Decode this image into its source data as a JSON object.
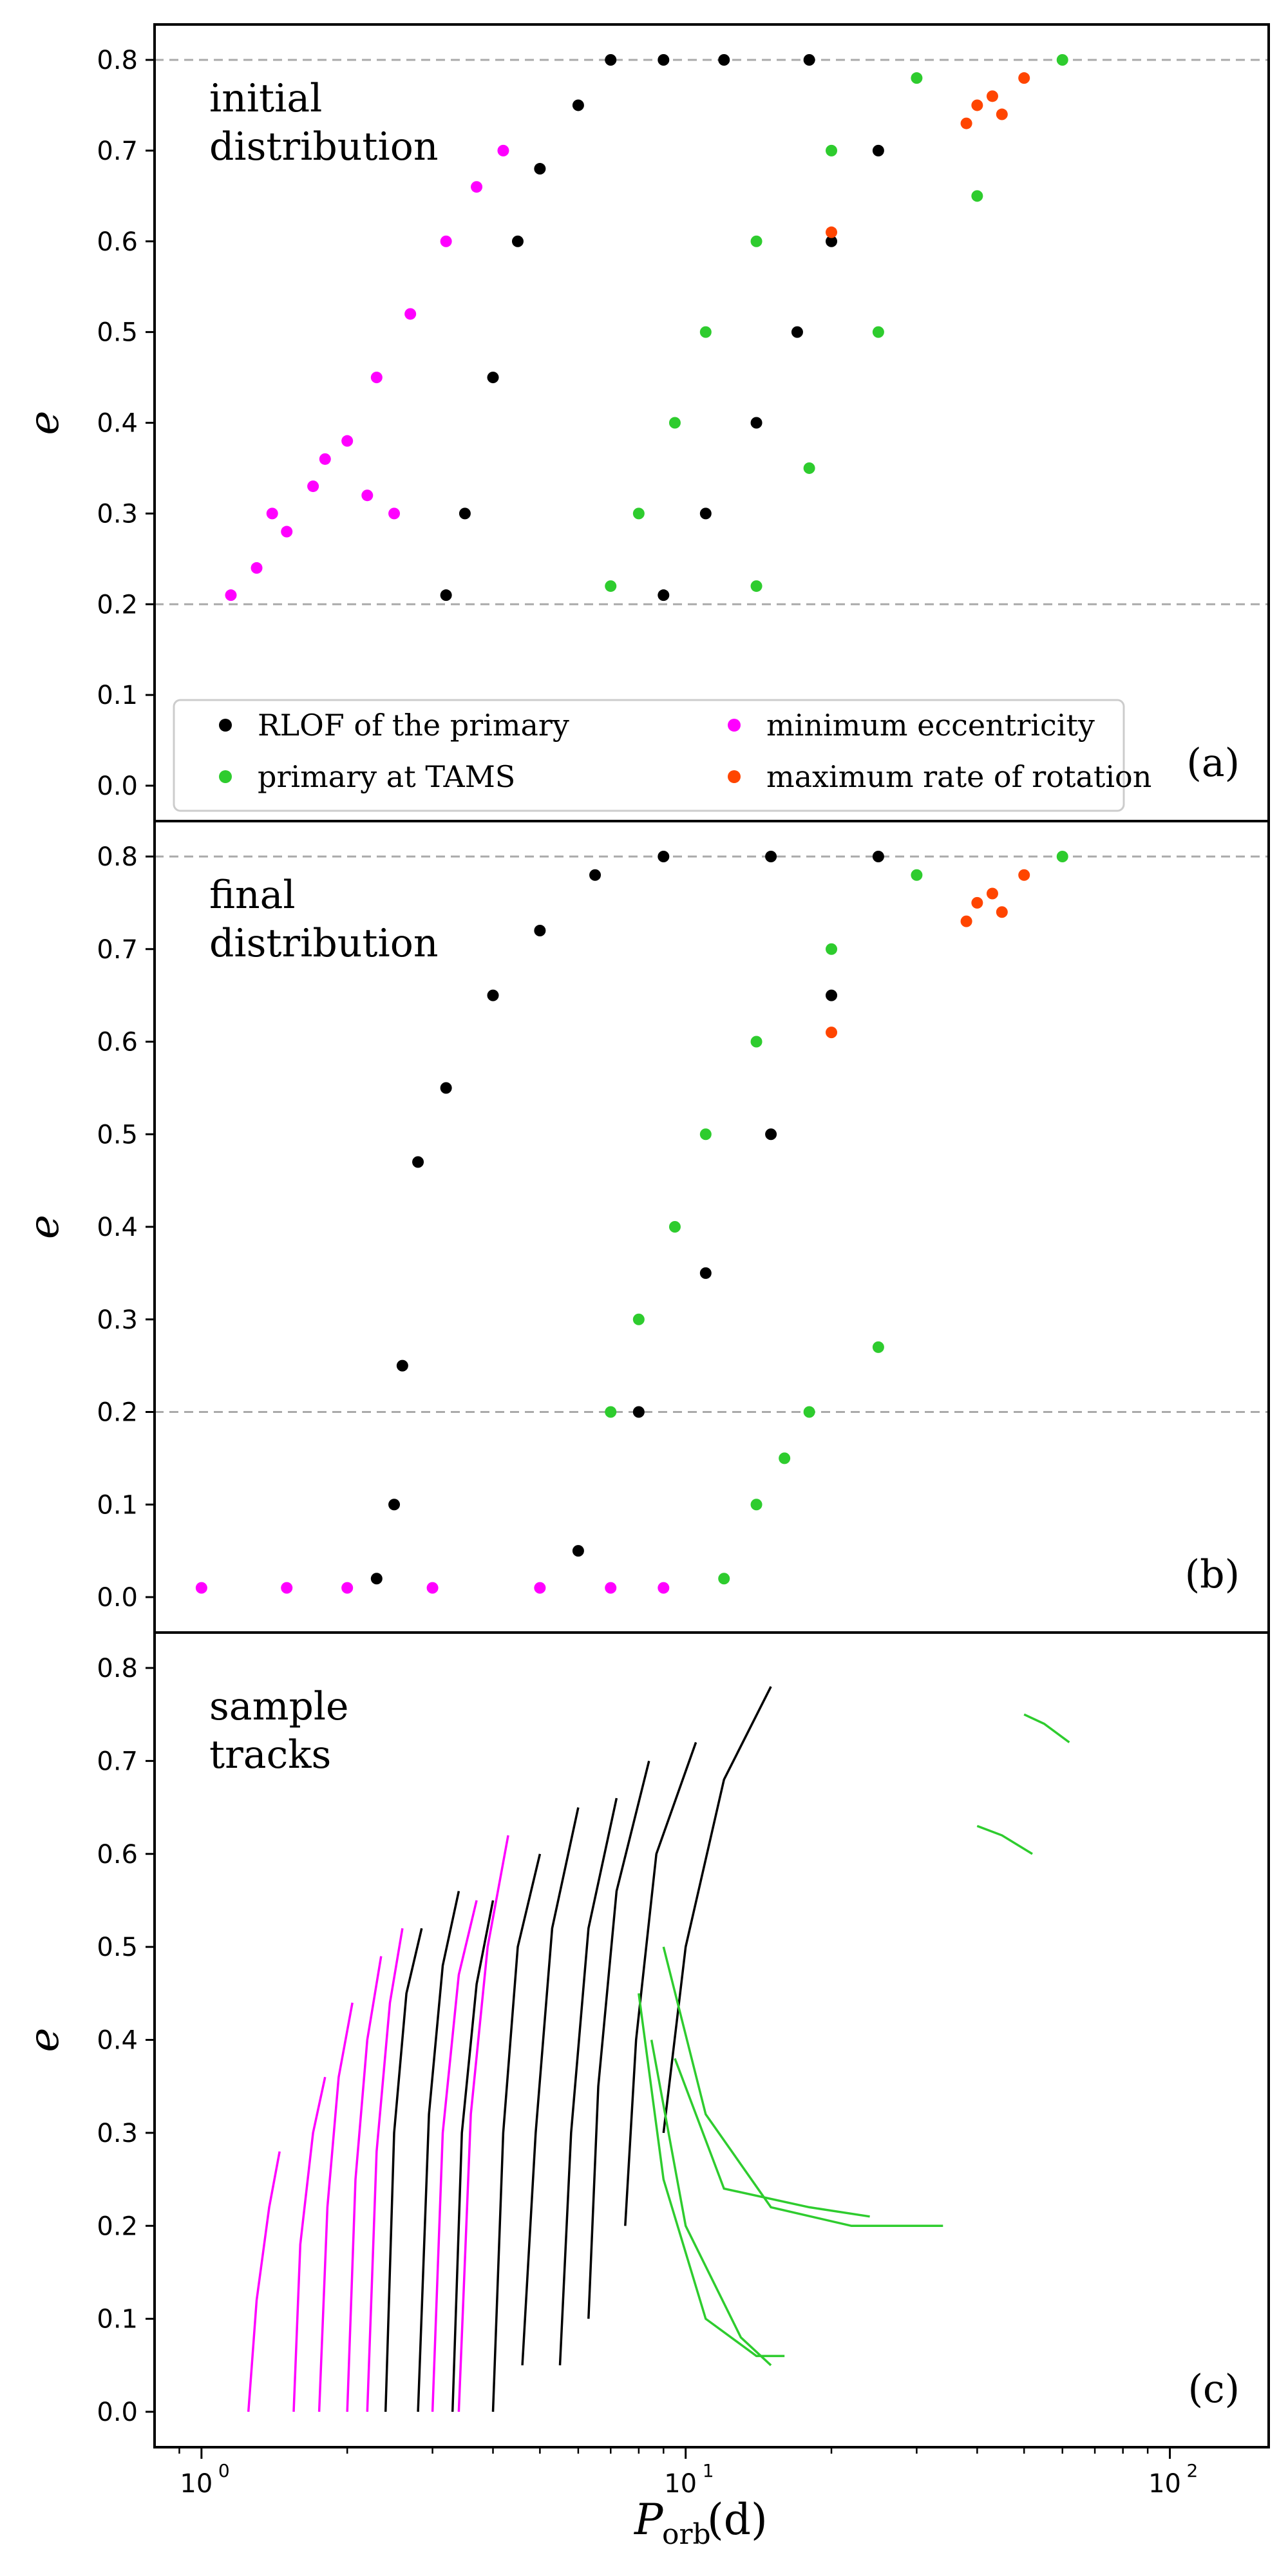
{
  "figure": {
    "xlabel_main": "P",
    "xlabel_sub": "orb",
    "xlabel_unit": "(d)",
    "xticks": [
      {
        "value": 1,
        "base": "10",
        "exp": "0"
      },
      {
        "value": 10,
        "base": "10",
        "exp": "1"
      },
      {
        "value": 100,
        "base": "10",
        "exp": "2"
      }
    ],
    "colors": {
      "rlof": "#000000",
      "tams": "#2ecc2e",
      "min_ecc": "#ff00ff",
      "max_rot": "#ff4500",
      "ref_line": "#aaaaaa"
    }
  },
  "legend": {
    "entries": [
      {
        "label": "RLOF of the primary",
        "color": "#000000"
      },
      {
        "label": "primary at TAMS",
        "color": "#2ecc2e"
      },
      {
        "label": "minimum eccentricity",
        "color": "#ff00ff"
      },
      {
        "label": "maximum rate of rotation",
        "color": "#ff4500"
      }
    ]
  },
  "chart_data": [
    {
      "type": "scatter",
      "panel_tag": "(a)",
      "annotation": [
        "initial",
        "distribution"
      ],
      "ylabel": "e",
      "ylim": [
        0,
        0.8
      ],
      "yticks": [
        "0.0",
        "0.1",
        "0.2",
        "0.3",
        "0.4",
        "0.5",
        "0.6",
        "0.7",
        "0.8"
      ],
      "xscale": "log",
      "hlines": [
        0.2,
        0.8
      ],
      "series": [
        {
          "name": "minimum eccentricity",
          "color": "#ff00ff",
          "points": [
            [
              1.15,
              0.21
            ],
            [
              1.3,
              0.24
            ],
            [
              1.5,
              0.28
            ],
            [
              1.7,
              0.33
            ],
            [
              2.0,
              0.38
            ],
            [
              2.3,
              0.45
            ],
            [
              2.7,
              0.52
            ],
            [
              3.2,
              0.6
            ],
            [
              3.7,
              0.66
            ],
            [
              4.2,
              0.7
            ],
            [
              1.4,
              0.3
            ],
            [
              1.8,
              0.36
            ],
            [
              2.2,
              0.32
            ],
            [
              2.5,
              0.3
            ]
          ]
        },
        {
          "name": "RLOF of the primary",
          "color": "#000000",
          "points": [
            [
              3.2,
              0.21
            ],
            [
              3.5,
              0.3
            ],
            [
              4.0,
              0.45
            ],
            [
              4.5,
              0.6
            ],
            [
              5.0,
              0.68
            ],
            [
              6.0,
              0.75
            ],
            [
              7.0,
              0.8
            ],
            [
              9.0,
              0.8
            ],
            [
              12.0,
              0.8
            ],
            [
              18.0,
              0.8
            ],
            [
              25.0,
              0.7
            ],
            [
              20.0,
              0.6
            ],
            [
              17.0,
              0.5
            ],
            [
              14.0,
              0.4
            ],
            [
              11.0,
              0.3
            ],
            [
              9.0,
              0.21
            ]
          ]
        },
        {
          "name": "primary at TAMS",
          "color": "#2ecc2e",
          "points": [
            [
              7.0,
              0.22
            ],
            [
              8.0,
              0.3
            ],
            [
              9.5,
              0.4
            ],
            [
              11.0,
              0.5
            ],
            [
              14.0,
              0.6
            ],
            [
              20.0,
              0.7
            ],
            [
              30.0,
              0.78
            ],
            [
              60.0,
              0.8
            ],
            [
              14.0,
              0.22
            ],
            [
              18.0,
              0.35
            ],
            [
              25.0,
              0.5
            ],
            [
              40.0,
              0.65
            ]
          ]
        },
        {
          "name": "maximum rate of rotation",
          "color": "#ff4500",
          "points": [
            [
              20.0,
              0.61
            ],
            [
              38.0,
              0.73
            ],
            [
              40.0,
              0.75
            ],
            [
              43.0,
              0.76
            ],
            [
              45.0,
              0.74
            ],
            [
              50.0,
              0.78
            ]
          ]
        }
      ]
    },
    {
      "type": "scatter",
      "panel_tag": "(b)",
      "annotation": [
        "final",
        "distribution"
      ],
      "ylabel": "e",
      "ylim": [
        0,
        0.8
      ],
      "yticks": [
        "0.0",
        "0.1",
        "0.2",
        "0.3",
        "0.4",
        "0.5",
        "0.6",
        "0.7",
        "0.8"
      ],
      "xscale": "log",
      "hlines": [
        0.2,
        0.8
      ],
      "series": [
        {
          "name": "minimum eccentricity",
          "color": "#ff00ff",
          "points": [
            [
              1.0,
              0.01
            ],
            [
              1.5,
              0.01
            ],
            [
              2.0,
              0.01
            ],
            [
              3.0,
              0.01
            ],
            [
              5.0,
              0.01
            ],
            [
              7.0,
              0.01
            ],
            [
              9.0,
              0.01
            ]
          ]
        },
        {
          "name": "RLOF of the primary",
          "color": "#000000",
          "points": [
            [
              2.3,
              0.02
            ],
            [
              2.5,
              0.1
            ],
            [
              2.6,
              0.25
            ],
            [
              2.8,
              0.47
            ],
            [
              3.2,
              0.55
            ],
            [
              4.0,
              0.65
            ],
            [
              5.0,
              0.72
            ],
            [
              6.5,
              0.78
            ],
            [
              9.0,
              0.8
            ],
            [
              15.0,
              0.8
            ],
            [
              25.0,
              0.8
            ],
            [
              20.0,
              0.65
            ],
            [
              15.0,
              0.5
            ],
            [
              11.0,
              0.35
            ],
            [
              8.0,
              0.2
            ],
            [
              6.0,
              0.05
            ]
          ]
        },
        {
          "name": "primary at TAMS",
          "color": "#2ecc2e",
          "points": [
            [
              7.0,
              0.2
            ],
            [
              8.0,
              0.3
            ],
            [
              9.5,
              0.4
            ],
            [
              11.0,
              0.5
            ],
            [
              14.0,
              0.6
            ],
            [
              20.0,
              0.7
            ],
            [
              30.0,
              0.78
            ],
            [
              60.0,
              0.8
            ],
            [
              12.0,
              0.02
            ],
            [
              14.0,
              0.1
            ],
            [
              18.0,
              0.2
            ],
            [
              25.0,
              0.27
            ],
            [
              16.0,
              0.15
            ]
          ]
        },
        {
          "name": "maximum rate of rotation",
          "color": "#ff4500",
          "points": [
            [
              20.0,
              0.61
            ],
            [
              38.0,
              0.73
            ],
            [
              40.0,
              0.75
            ],
            [
              43.0,
              0.76
            ],
            [
              45.0,
              0.74
            ],
            [
              50.0,
              0.78
            ]
          ]
        }
      ]
    },
    {
      "type": "line",
      "panel_tag": "(c)",
      "annotation": [
        "sample",
        "tracks"
      ],
      "ylabel": "e",
      "ylim": [
        0,
        0.8
      ],
      "yticks": [
        "0.0",
        "0.1",
        "0.2",
        "0.3",
        "0.4",
        "0.5",
        "0.6",
        "0.7",
        "0.8"
      ],
      "xscale": "log",
      "hlines": [],
      "series": [
        {
          "color": "#ff00ff",
          "tracks": [
            [
              [
                1.25,
                0.0
              ],
              [
                1.3,
                0.12
              ],
              [
                1.38,
                0.22
              ],
              [
                1.45,
                0.28
              ]
            ],
            [
              [
                1.55,
                0.0
              ],
              [
                1.6,
                0.18
              ],
              [
                1.7,
                0.3
              ],
              [
                1.8,
                0.36
              ]
            ],
            [
              [
                1.75,
                0.0
              ],
              [
                1.82,
                0.22
              ],
              [
                1.92,
                0.36
              ],
              [
                2.05,
                0.44
              ]
            ],
            [
              [
                2.0,
                0.0
              ],
              [
                2.08,
                0.25
              ],
              [
                2.2,
                0.4
              ],
              [
                2.35,
                0.49
              ]
            ],
            [
              [
                2.2,
                0.0
              ],
              [
                2.3,
                0.28
              ],
              [
                2.45,
                0.44
              ],
              [
                2.6,
                0.52
              ]
            ],
            [
              [
                3.4,
                0.0
              ],
              [
                3.6,
                0.32
              ],
              [
                3.9,
                0.5
              ],
              [
                4.3,
                0.62
              ]
            ],
            [
              [
                3.0,
                0.0
              ],
              [
                3.15,
                0.3
              ],
              [
                3.4,
                0.47
              ],
              [
                3.7,
                0.55
              ]
            ]
          ]
        },
        {
          "color": "#000000",
          "tracks": [
            [
              [
                2.4,
                0.0
              ],
              [
                2.5,
                0.3
              ],
              [
                2.65,
                0.45
              ],
              [
                2.85,
                0.52
              ]
            ],
            [
              [
                2.8,
                0.0
              ],
              [
                2.95,
                0.32
              ],
              [
                3.15,
                0.48
              ],
              [
                3.4,
                0.56
              ]
            ],
            [
              [
                3.3,
                0.0
              ],
              [
                3.45,
                0.3
              ],
              [
                3.7,
                0.46
              ],
              [
                4.0,
                0.55
              ]
            ],
            [
              [
                4.0,
                0.0
              ],
              [
                4.2,
                0.3
              ],
              [
                4.5,
                0.5
              ],
              [
                5.0,
                0.6
              ]
            ],
            [
              [
                4.6,
                0.05
              ],
              [
                4.9,
                0.3
              ],
              [
                5.3,
                0.52
              ],
              [
                6.0,
                0.65
              ]
            ],
            [
              [
                5.5,
                0.05
              ],
              [
                5.8,
                0.3
              ],
              [
                6.3,
                0.52
              ],
              [
                7.2,
                0.66
              ]
            ],
            [
              [
                6.3,
                0.1
              ],
              [
                6.6,
                0.35
              ],
              [
                7.2,
                0.56
              ],
              [
                8.4,
                0.7
              ]
            ],
            [
              [
                7.5,
                0.2
              ],
              [
                7.9,
                0.4
              ],
              [
                8.7,
                0.6
              ],
              [
                10.5,
                0.72
              ]
            ],
            [
              [
                9.0,
                0.3
              ],
              [
                10.0,
                0.5
              ],
              [
                12.0,
                0.68
              ],
              [
                15.0,
                0.78
              ]
            ]
          ]
        },
        {
          "color": "#2ecc2e",
          "tracks": [
            [
              [
                8.0,
                0.45
              ],
              [
                9.0,
                0.25
              ],
              [
                11.0,
                0.1
              ],
              [
                14.0,
                0.06
              ],
              [
                16.0,
                0.06
              ]
            ],
            [
              [
                8.5,
                0.4
              ],
              [
                10.0,
                0.2
              ],
              [
                13.0,
                0.08
              ],
              [
                15.0,
                0.05
              ]
            ],
            [
              [
                9.0,
                0.5
              ],
              [
                11.0,
                0.32
              ],
              [
                15.0,
                0.22
              ],
              [
                22.0,
                0.2
              ],
              [
                34.0,
                0.2
              ]
            ],
            [
              [
                9.5,
                0.38
              ],
              [
                12.0,
                0.24
              ],
              [
                18.0,
                0.22
              ],
              [
                24.0,
                0.21
              ]
            ],
            [
              [
                40.0,
                0.63
              ],
              [
                45.0,
                0.62
              ],
              [
                52.0,
                0.6
              ]
            ],
            [
              [
                50.0,
                0.75
              ],
              [
                55.0,
                0.74
              ],
              [
                62.0,
                0.72
              ]
            ]
          ]
        }
      ]
    }
  ]
}
